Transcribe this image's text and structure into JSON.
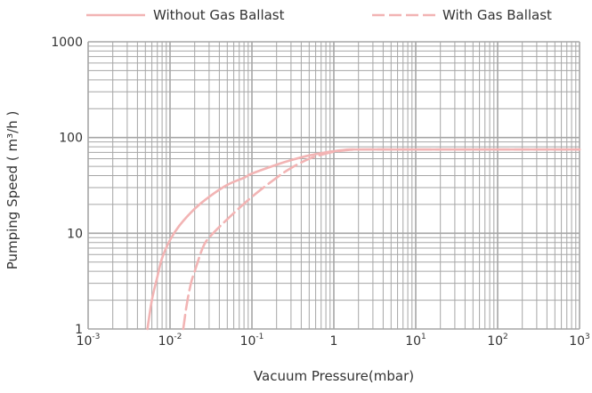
{
  "chart_data": {
    "type": "line",
    "title": "",
    "xlabel": "Vacuum Pressure(mbar)",
    "ylabel": "Pumping Speed ( m³/h )",
    "xscale": "log",
    "yscale": "log",
    "xlim": [
      0.001,
      1000
    ],
    "ylim": [
      1,
      1000
    ],
    "grid": true,
    "legend_position": "top",
    "x_ticks": [
      {
        "base": "10",
        "exp": "-3"
      },
      {
        "base": "10",
        "exp": "-2"
      },
      {
        "base": "10",
        "exp": "-1"
      },
      {
        "base": "1",
        "exp": ""
      },
      {
        "base": "10",
        "exp": "1"
      },
      {
        "base": "10",
        "exp": "2"
      },
      {
        "base": "10",
        "exp": "3"
      }
    ],
    "y_ticks": [
      "1",
      "10",
      "100",
      "1000"
    ],
    "series": [
      {
        "name": "Without Gas Ballast",
        "style": "solid",
        "color": "#f2b4b4",
        "x": [
          0.0053,
          0.006,
          0.007,
          0.008,
          0.01,
          0.013,
          0.02,
          0.03,
          0.05,
          0.08,
          0.1,
          0.2,
          0.3,
          0.5,
          0.8,
          1.0,
          1.5,
          2,
          5,
          10,
          100,
          1000
        ],
        "y": [
          1,
          2,
          3.5,
          5.5,
          8.5,
          12,
          18,
          24,
          32,
          38,
          42,
          52,
          58,
          65,
          70,
          72,
          75,
          75,
          75,
          75,
          75,
          75
        ]
      },
      {
        "name": "With Gas Ballast",
        "style": "dashed",
        "color": "#f2b4b4",
        "x": [
          0.0145,
          0.016,
          0.018,
          0.02,
          0.025,
          0.03,
          0.05,
          0.1,
          0.2,
          0.3,
          0.5,
          0.8,
          1.0,
          1.5,
          2,
          5,
          10,
          100,
          1000
        ],
        "y": [
          1,
          1.8,
          3,
          4,
          7,
          9,
          14,
          24,
          38,
          48,
          60,
          68,
          71,
          74,
          75,
          75,
          75,
          75,
          75
        ]
      }
    ]
  },
  "colors": {
    "grid": "#a6a6a6",
    "line": "#f2b4b4",
    "text": "#333333"
  }
}
